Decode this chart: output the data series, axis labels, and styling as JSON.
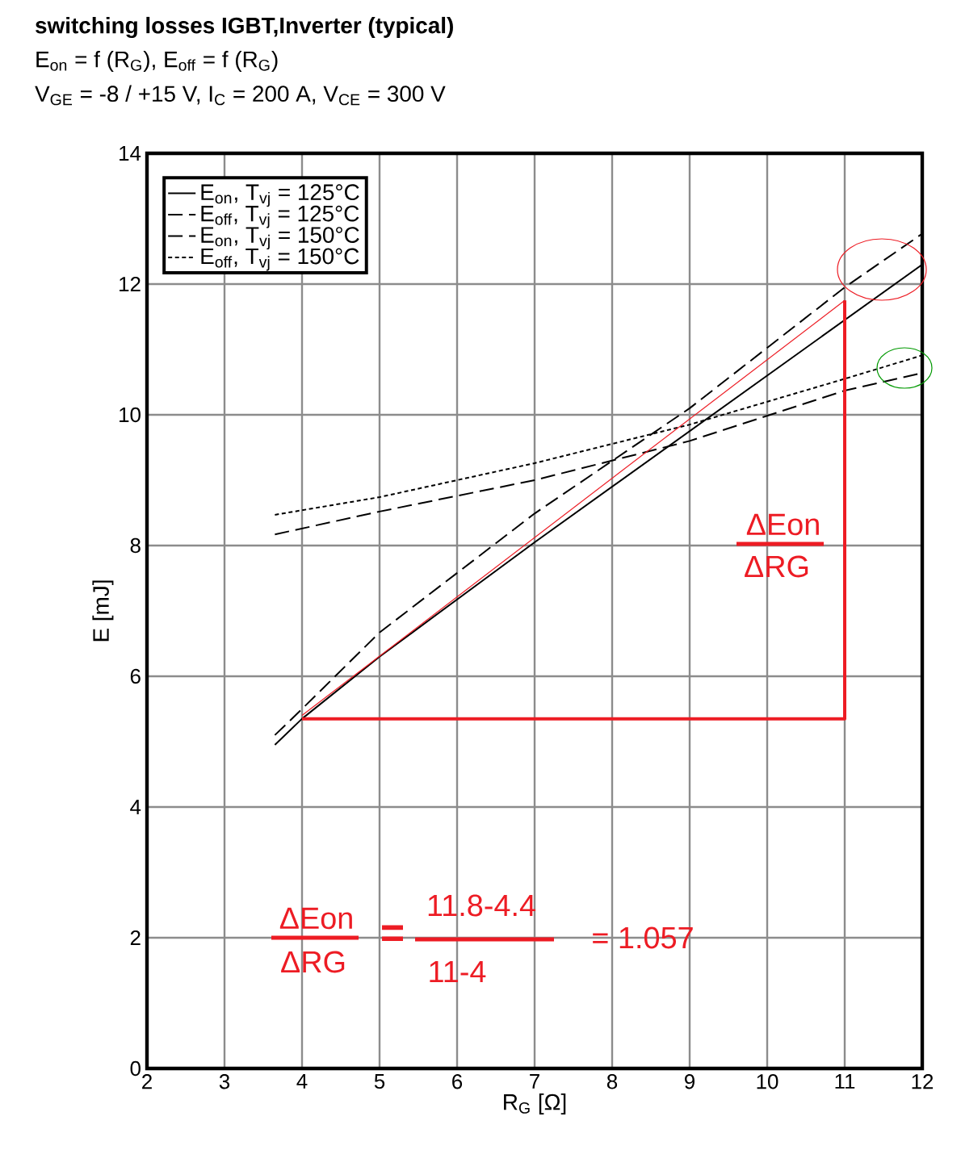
{
  "chart_data": {
    "type": "line",
    "title": "switching losses IGBT,Inverter (typical)",
    "subtitle": "E$_{on}$ = f (R$_{G}$), E$_{off}$ = f (R$_{G}$)",
    "xlabel": "R$_{G}$ [Ω]",
    "ylabel": "E [mJ]",
    "annotations": [
      "V$_{GE}$ = -8 / +15 V, I$_{C}$ = 200 A, V$_{CE}$ = 300 V",
      "ΔEon",
      "ΔRG",
      "ΔEon",
      "ΔRG",
      "=",
      "11.8-4.4",
      "11-4",
      "= 1.057"
    ],
    "xlim": [
      2,
      12
    ],
    "ylim": [
      0,
      14
    ],
    "xticks": [
      2,
      3,
      4,
      5,
      6,
      7,
      8,
      9,
      10,
      11,
      12
    ],
    "yticks": [
      0,
      2,
      4,
      6,
      8,
      10,
      12,
      14
    ],
    "grid": true,
    "legend": "top left",
    "series": [
      {
        "name": "E$_{on}$, T$_{vj}$ = 125°C",
        "color": "#000000",
        "line_style": "solid",
        "x": [
          3.65,
          4,
          5,
          7,
          9,
          11,
          12
        ],
        "values": [
          4.95,
          5.35,
          6.3,
          8.05,
          9.75,
          11.45,
          12.3
        ]
      },
      {
        "name": "E$_{off}$, T$_{vj}$ = 125°C",
        "color": "#000000",
        "line_style": "dashed",
        "x": [
          3.65,
          5,
          7,
          9,
          11,
          12
        ],
        "values": [
          8.17,
          8.52,
          9.0,
          9.6,
          10.37,
          10.64
        ]
      },
      {
        "name": "E$_{on}$, T$_{vj}$ = 150°C",
        "color": "#000000",
        "line_style": "dashed",
        "x": [
          3.65,
          4,
          5,
          7,
          9,
          11,
          12
        ],
        "values": [
          5.1,
          5.5,
          6.67,
          8.49,
          10.1,
          11.95,
          12.77
        ]
      },
      {
        "name": "E$_{off}$, T$_{vj}$ = 150°C",
        "color": "#000000",
        "line_style": "dotted",
        "x": [
          3.65,
          5,
          7,
          9,
          11,
          12
        ],
        "values": [
          8.47,
          8.74,
          9.26,
          9.85,
          10.55,
          10.91
        ]
      },
      {
        "color": "#ed1c24",
        "line_style": "solid",
        "x": [
          4,
          11
        ],
        "values": [
          5.4,
          11.75
        ]
      },
      {
        "color": "#ed1c24",
        "line_style": "solid",
        "x": [
          4,
          11,
          11
        ],
        "values": [
          5.35,
          5.35,
          11.75
        ]
      }
    ]
  }
}
